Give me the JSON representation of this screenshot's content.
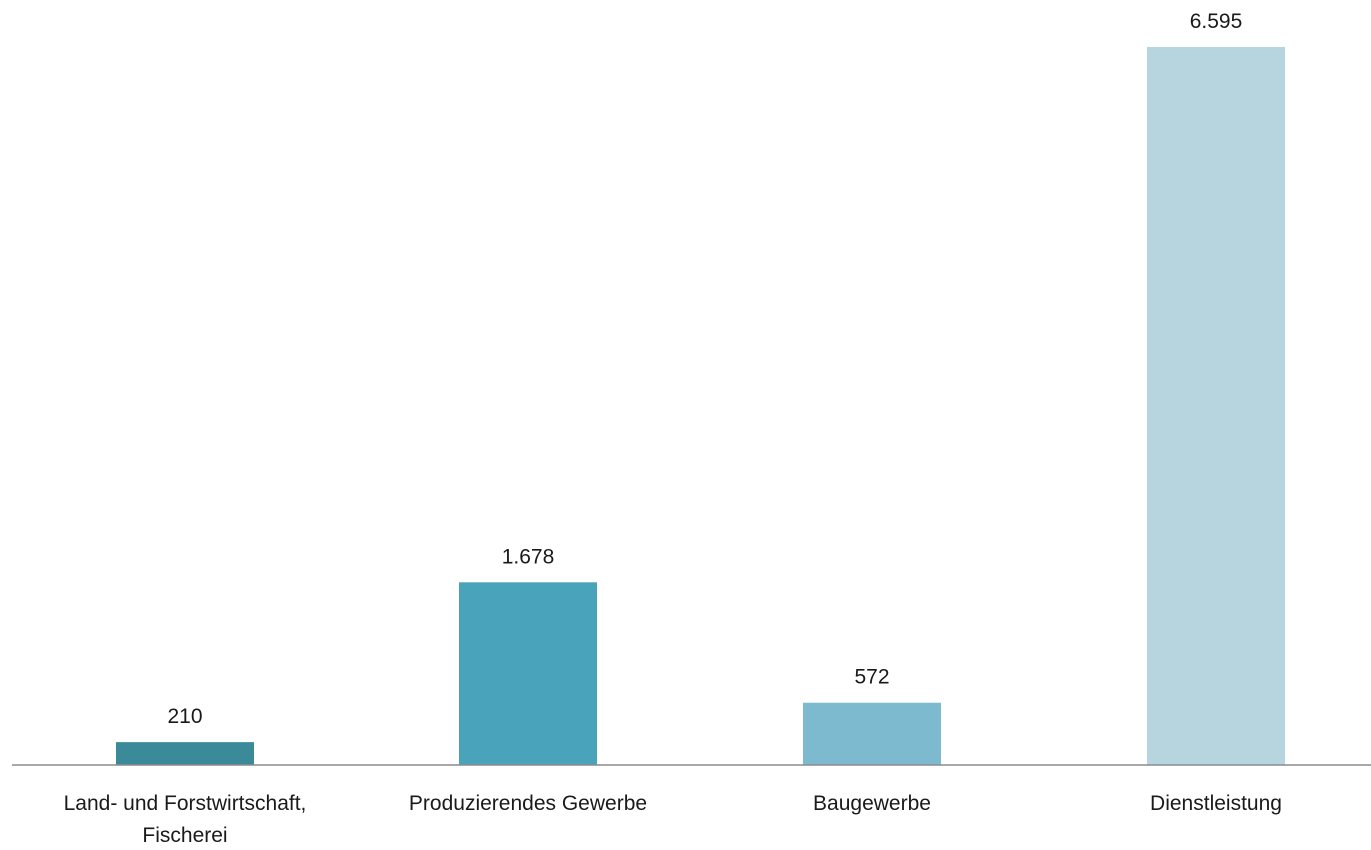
{
  "chart_data": {
    "type": "bar",
    "categories": [
      [
        "Land- und Forstwirtschaft,",
        "Fischerei"
      ],
      [
        "Produzierendes Gewerbe"
      ],
      [
        "Baugewerbe"
      ],
      [
        "Dienstleistung"
      ]
    ],
    "values": [
      210,
      1678,
      572,
      6595
    ],
    "value_labels": [
      "210",
      "1.678",
      "572",
      "6.595"
    ],
    "colors": [
      "#3a8a9a",
      "#48a3bb",
      "#7dbad0",
      "#b6d5de"
    ],
    "ylim": [
      0,
      6595
    ],
    "grid": false,
    "legend": "none"
  }
}
